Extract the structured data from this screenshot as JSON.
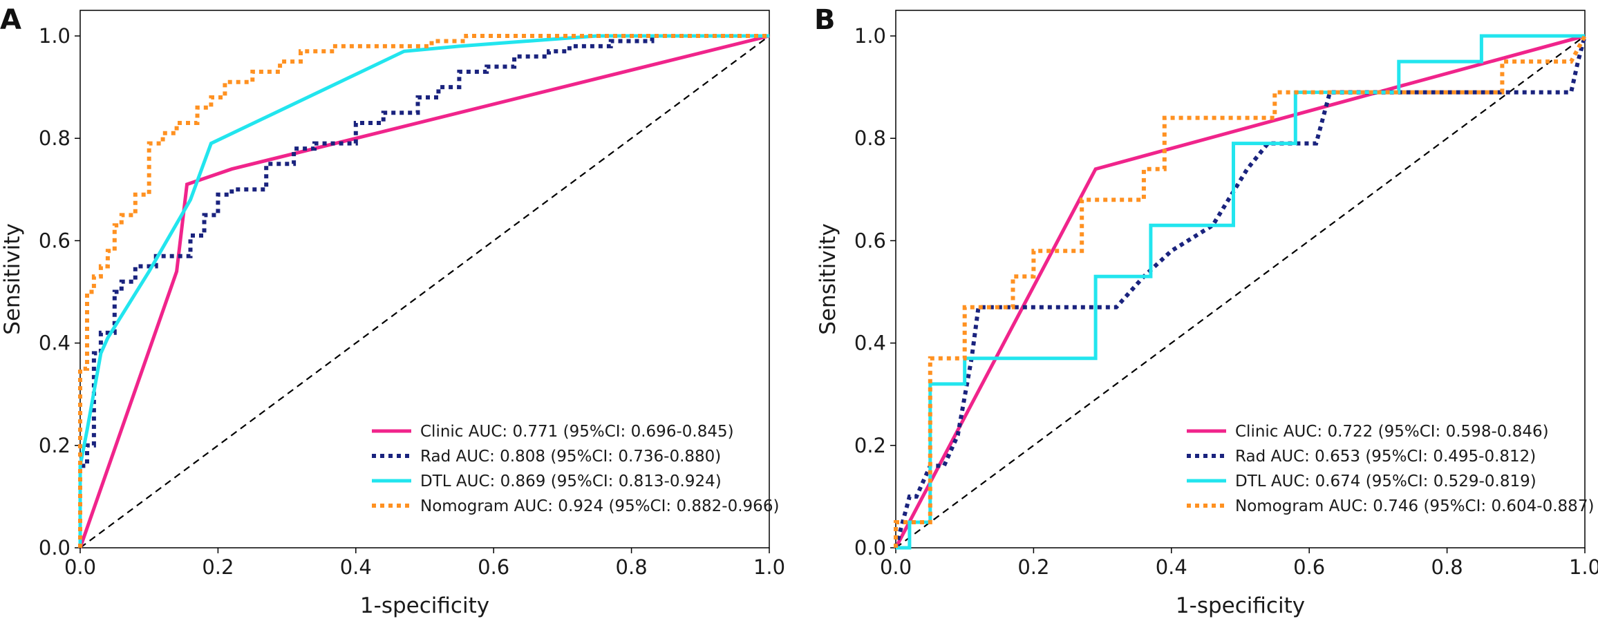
{
  "chart_data": [
    {
      "type": "line",
      "panel_label": "A",
      "xlabel": "1-specificity",
      "ylabel": "Sensitivity",
      "xlim": [
        0,
        1
      ],
      "ylim": [
        0,
        1.05
      ],
      "xticks": [
        "0.0",
        "0.2",
        "0.4",
        "0.6",
        "0.8",
        "1.0"
      ],
      "yticks": [
        "0.0",
        "0.2",
        "0.4",
        "0.6",
        "0.8",
        "1.0"
      ],
      "grid": false,
      "legend_position": "bottom-right",
      "reference_line": "diagonal",
      "series": [
        {
          "name": "Clinic AUC: 0.771 (95%CI: 0.696-0.845)",
          "color": "#f0248b",
          "style": "solid",
          "x": [
            0.0,
            0.14,
            0.155,
            0.22,
            1.0
          ],
          "y": [
            0.0,
            0.54,
            0.71,
            0.74,
            1.0
          ]
        },
        {
          "name": "Rad AUC: 0.808 (95%CI: 0.736-0.880)",
          "color": "#1a237e",
          "style": "dotted",
          "x": [
            0.0,
            0.0,
            0.01,
            0.01,
            0.02,
            0.02,
            0.03,
            0.03,
            0.05,
            0.05,
            0.06,
            0.06,
            0.08,
            0.08,
            0.11,
            0.11,
            0.16,
            0.16,
            0.18,
            0.18,
            0.2,
            0.2,
            0.22,
            0.22,
            0.27,
            0.27,
            0.31,
            0.31,
            0.34,
            0.34,
            0.4,
            0.4,
            0.44,
            0.44,
            0.49,
            0.49,
            0.52,
            0.52,
            0.55,
            0.55,
            0.59,
            0.59,
            0.63,
            0.63,
            0.68,
            0.68,
            0.71,
            0.71,
            0.77,
            0.77,
            0.83,
            0.83,
            0.87,
            0.87,
            1.0
          ],
          "y": [
            0.0,
            0.16,
            0.16,
            0.2,
            0.2,
            0.38,
            0.38,
            0.42,
            0.42,
            0.5,
            0.5,
            0.52,
            0.52,
            0.55,
            0.55,
            0.57,
            0.57,
            0.61,
            0.61,
            0.65,
            0.65,
            0.69,
            0.69,
            0.7,
            0.7,
            0.75,
            0.75,
            0.78,
            0.78,
            0.79,
            0.79,
            0.83,
            0.83,
            0.85,
            0.85,
            0.88,
            0.88,
            0.9,
            0.9,
            0.93,
            0.93,
            0.94,
            0.94,
            0.96,
            0.96,
            0.97,
            0.97,
            0.98,
            0.98,
            0.99,
            0.99,
            1.0,
            1.0,
            1.0,
            1.0
          ]
        },
        {
          "name": "DTL AUC: 0.869 (95%CI: 0.813-0.924)",
          "color": "#22e5ee",
          "style": "solid",
          "x": [
            0.0,
            0.0,
            0.01,
            0.03,
            0.04,
            0.1,
            0.16,
            0.19,
            0.47,
            0.55,
            0.75,
            1.0
          ],
          "y": [
            0.0,
            0.16,
            0.23,
            0.38,
            0.41,
            0.54,
            0.68,
            0.79,
            0.97,
            0.98,
            1.0,
            1.0
          ]
        },
        {
          "name": "Nomogram AUC: 0.924 (95%CI: 0.882-0.966)",
          "color": "#ff9121",
          "style": "dotted",
          "x": [
            0.0,
            0.0,
            0.01,
            0.01,
            0.02,
            0.02,
            0.03,
            0.03,
            0.04,
            0.04,
            0.05,
            0.05,
            0.06,
            0.06,
            0.08,
            0.08,
            0.1,
            0.1,
            0.12,
            0.12,
            0.14,
            0.14,
            0.17,
            0.17,
            0.19,
            0.19,
            0.21,
            0.21,
            0.25,
            0.25,
            0.29,
            0.29,
            0.32,
            0.32,
            0.37,
            0.37,
            0.51,
            0.51,
            0.56,
            0.56,
            0.76,
            0.76,
            1.0
          ],
          "y": [
            0.0,
            0.35,
            0.35,
            0.5,
            0.5,
            0.53,
            0.53,
            0.55,
            0.55,
            0.58,
            0.58,
            0.63,
            0.63,
            0.65,
            0.65,
            0.69,
            0.69,
            0.79,
            0.79,
            0.81,
            0.81,
            0.83,
            0.83,
            0.86,
            0.86,
            0.88,
            0.88,
            0.91,
            0.91,
            0.93,
            0.93,
            0.95,
            0.95,
            0.97,
            0.97,
            0.98,
            0.98,
            0.99,
            0.99,
            1.0,
            1.0,
            1.0,
            1.0
          ]
        }
      ]
    },
    {
      "type": "line",
      "panel_label": "B",
      "xlabel": "1-specificity",
      "ylabel": "Sensitivity",
      "xlim": [
        0,
        1
      ],
      "ylim": [
        0,
        1.05
      ],
      "xticks": [
        "0.0",
        "0.2",
        "0.4",
        "0.6",
        "0.8",
        "1.0"
      ],
      "yticks": [
        "0.0",
        "0.2",
        "0.4",
        "0.6",
        "0.8",
        "1.0"
      ],
      "grid": false,
      "legend_position": "bottom-right",
      "reference_line": "diagonal",
      "series": [
        {
          "name": "Clinic AUC: 0.722 (95%CI: 0.598-0.846)",
          "color": "#f0248b",
          "style": "solid",
          "x": [
            0.0,
            0.29,
            1.0
          ],
          "y": [
            0.0,
            0.74,
            1.0
          ]
        },
        {
          "name": "Rad AUC: 0.653 (95%CI: 0.495-0.812)",
          "color": "#1a237e",
          "style": "dotted",
          "x": [
            0.0,
            0.02,
            0.03,
            0.05,
            0.07,
            0.09,
            0.11,
            0.12,
            0.18,
            0.32,
            0.36,
            0.4,
            0.46,
            0.51,
            0.54,
            0.55,
            0.61,
            0.63,
            0.87,
            0.98,
            0.99,
            1.0
          ],
          "y": [
            0.0,
            0.1,
            0.1,
            0.16,
            0.16,
            0.22,
            0.37,
            0.47,
            0.47,
            0.47,
            0.53,
            0.58,
            0.63,
            0.74,
            0.79,
            0.79,
            0.79,
            0.89,
            0.89,
            0.89,
            0.95,
            1.0
          ]
        },
        {
          "name": "DTL AUC: 0.674 (95%CI: 0.529-0.819)",
          "color": "#22e5ee",
          "style": "solid",
          "x": [
            0.0,
            0.02,
            0.02,
            0.05,
            0.05,
            0.1,
            0.1,
            0.29,
            0.29,
            0.37,
            0.37,
            0.49,
            0.49,
            0.58,
            0.58,
            0.73,
            0.73,
            0.85,
            0.85,
            1.0
          ],
          "y": [
            0.0,
            0.0,
            0.05,
            0.05,
            0.32,
            0.32,
            0.37,
            0.37,
            0.53,
            0.53,
            0.63,
            0.63,
            0.79,
            0.79,
            0.89,
            0.89,
            0.95,
            0.95,
            1.0,
            1.0
          ]
        },
        {
          "name": "Nomogram AUC: 0.746 (95%CI: 0.604-0.887)",
          "color": "#ff9121",
          "style": "dotted",
          "x": [
            0.0,
            0.0,
            0.05,
            0.05,
            0.1,
            0.1,
            0.17,
            0.17,
            0.2,
            0.2,
            0.27,
            0.27,
            0.36,
            0.36,
            0.39,
            0.39,
            0.55,
            0.55,
            0.8,
            0.8,
            0.88,
            0.88,
            0.98,
            1.0
          ],
          "y": [
            0.0,
            0.05,
            0.05,
            0.37,
            0.37,
            0.47,
            0.47,
            0.53,
            0.53,
            0.58,
            0.58,
            0.68,
            0.68,
            0.74,
            0.74,
            0.84,
            0.84,
            0.89,
            0.89,
            0.89,
            0.89,
            0.95,
            0.95,
            1.0
          ]
        }
      ]
    }
  ]
}
